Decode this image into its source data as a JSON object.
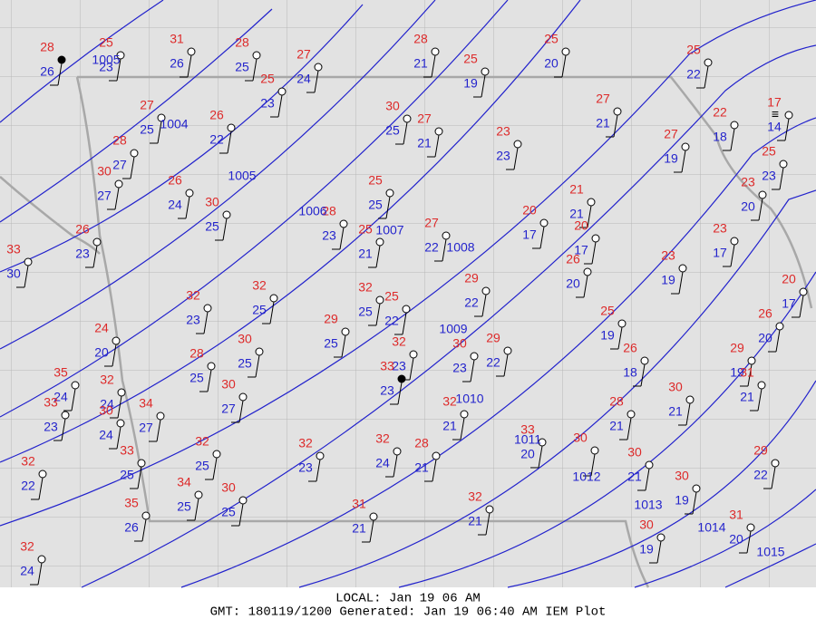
{
  "map": {
    "stations": [
      {
        "temp": "28",
        "dew": "26"
      },
      {
        "temp": "25",
        "dew": "23"
      },
      {
        "temp": "31",
        "dew": "26"
      },
      {
        "temp": "28",
        "dew": "25"
      },
      {
        "temp": "27",
        "dew": "24"
      },
      {
        "temp": "28",
        "dew": "21"
      },
      {
        "temp": "25",
        "dew": "19"
      },
      {
        "temp": "25",
        "dew": "20"
      },
      {
        "temp": "25",
        "dew": "22"
      },
      {
        "temp": "25",
        "dew": "23"
      },
      {
        "temp": "27",
        "dew": "25"
      },
      {
        "temp": "26",
        "dew": "22"
      },
      {
        "temp": "30",
        "dew": "25"
      },
      {
        "temp": "27",
        "dew": "21"
      },
      {
        "temp": "27",
        "dew": "21"
      },
      {
        "temp": "22",
        "dew": "18"
      },
      {
        "temp": "17",
        "dew": "14"
      },
      {
        "temp": "28",
        "dew": "27"
      },
      {
        "temp": "30",
        "dew": "27"
      },
      {
        "temp": "23",
        "dew": "23"
      },
      {
        "temp": "27",
        "dew": "19"
      },
      {
        "temp": "25",
        "dew": "23"
      },
      {
        "temp": "26",
        "dew": "24"
      },
      {
        "temp": "30",
        "dew": "25"
      },
      {
        "temp": "25",
        "dew": "25"
      },
      {
        "temp": "28",
        "dew": "23"
      },
      {
        "temp": "25",
        "dew": "21"
      },
      {
        "temp": "27",
        "dew": "22"
      },
      {
        "temp": "20",
        "dew": "17"
      },
      {
        "temp": "21",
        "dew": "21"
      },
      {
        "temp": "20",
        "dew": "17"
      },
      {
        "temp": "23",
        "dew": "20"
      },
      {
        "temp": "26",
        "dew": "23"
      },
      {
        "temp": "33",
        "dew": "30"
      },
      {
        "temp": "23",
        "dew": "17"
      },
      {
        "temp": "23",
        "dew": "19"
      },
      {
        "temp": "26",
        "dew": "20"
      },
      {
        "temp": "29",
        "dew": "22"
      },
      {
        "temp": "32",
        "dew": "25"
      },
      {
        "temp": "32",
        "dew": "23"
      },
      {
        "temp": "32",
        "dew": "25"
      },
      {
        "temp": "25",
        "dew": "22"
      },
      {
        "temp": "29",
        "dew": "25"
      },
      {
        "temp": "20",
        "dew": "17"
      },
      {
        "temp": "24",
        "dew": "20"
      },
      {
        "temp": "25",
        "dew": "19"
      },
      {
        "temp": "26",
        "dew": "20"
      },
      {
        "temp": "32",
        "dew": "23"
      },
      {
        "temp": "30",
        "dew": "23"
      },
      {
        "temp": "29",
        "dew": "22"
      },
      {
        "temp": "30",
        "dew": "25"
      },
      {
        "temp": "28",
        "dew": "25"
      },
      {
        "temp": "26",
        "dew": "18"
      },
      {
        "temp": "29",
        "dew": "19"
      },
      {
        "temp": "31",
        "dew": "21"
      },
      {
        "temp": "33",
        "dew": "23"
      },
      {
        "temp": "35",
        "dew": "24"
      },
      {
        "temp": "32",
        "dew": "24"
      },
      {
        "temp": "33",
        "dew": "23"
      },
      {
        "temp": "30",
        "dew": "24"
      },
      {
        "temp": "34",
        "dew": "27"
      },
      {
        "temp": "30",
        "dew": "27"
      },
      {
        "temp": "32",
        "dew": "21"
      },
      {
        "temp": "28",
        "dew": "21"
      },
      {
        "temp": "30",
        "dew": "21"
      },
      {
        "temp": "33",
        "dew": "20"
      },
      {
        "temp": "30"
      },
      {
        "temp": "32",
        "dew": "25"
      },
      {
        "temp": "32",
        "dew": "23"
      },
      {
        "temp": "32",
        "dew": "24"
      },
      {
        "temp": "28",
        "dew": "21"
      },
      {
        "temp": "33",
        "dew": "25"
      },
      {
        "temp": "32",
        "dew": "22"
      },
      {
        "temp": "30",
        "dew": "21"
      },
      {
        "temp": "29",
        "dew": "22"
      },
      {
        "temp": "30",
        "dew": "19"
      },
      {
        "temp": "34",
        "dew": "25"
      },
      {
        "temp": "30",
        "dew": "25"
      },
      {
        "temp": "35",
        "dew": "26"
      },
      {
        "temp": "32",
        "dew": "21"
      },
      {
        "temp": "31",
        "dew": "21"
      },
      {
        "temp": "31",
        "dew": "20"
      },
      {
        "temp": "30",
        "dew": "19"
      },
      {
        "temp": "32",
        "dew": "24"
      }
    ],
    "isobar_labels": [
      "1005",
      "1004",
      "1005",
      "1006",
      "1007",
      "1008",
      "1009",
      "1010",
      "1011",
      "1012",
      "1013",
      "1014",
      "1015"
    ],
    "footer": {
      "local": "LOCAL: Jan 19 06 AM",
      "gmt": "GMT: 180119/1200 Generated: Jan 19 06:40 AM IEM Plot"
    }
  }
}
